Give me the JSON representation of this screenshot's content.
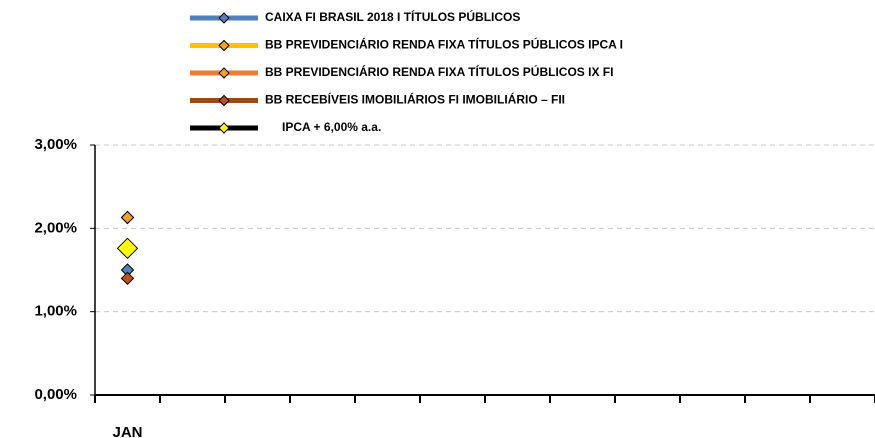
{
  "chart_data": {
    "type": "line",
    "categories": [
      "JAN",
      null,
      null,
      null,
      null,
      null,
      null,
      null,
      null,
      null,
      null,
      null
    ],
    "series": [
      {
        "name": "CAIXA FI BRASIL 2018 I TÍTULOS PÚBLICOS",
        "color": "#4f81bd",
        "marker_color": "#4f81bd",
        "values": [
          1.5,
          null,
          null,
          null,
          null,
          null,
          null,
          null,
          null,
          null,
          null,
          null
        ]
      },
      {
        "name": "BB PREVIDENCIÁRIO RENDA FIXA TÍTULOS PÚBLICOS IPCA I",
        "color": "#ffc000",
        "marker_color": "#f7a21b",
        "values": [
          2.13,
          null,
          null,
          null,
          null,
          null,
          null,
          null,
          null,
          null,
          null,
          null
        ]
      },
      {
        "name": "BB PREVIDENCIÁRIO RENDA FIXA TÍTULOS PÚBLICOS IX FI",
        "color": "#ed7d31",
        "marker_color": "#f7a21b",
        "values": [
          2.13,
          null,
          null,
          null,
          null,
          null,
          null,
          null,
          null,
          null,
          null,
          null
        ]
      },
      {
        "name": "BB RECEBÍVEIS IMOBILIÁRIOS FI IMOBILIÁRIO – FII",
        "color": "#9c4a12",
        "marker_color": "#b5541b",
        "values": [
          1.4,
          null,
          null,
          null,
          null,
          null,
          null,
          null,
          null,
          null,
          null,
          null
        ]
      },
      {
        "name": "IPCA + 6,00% a.a.",
        "color": "#000000",
        "marker_color": "#ffff00",
        "values": [
          1.76,
          null,
          null,
          null,
          null,
          null,
          null,
          null,
          null,
          null,
          null,
          null
        ]
      }
    ],
    "ylim": [
      0,
      3
    ],
    "yticks": [
      {
        "value": 0,
        "label": "0,00%"
      },
      {
        "value": 1,
        "label": "1,00%"
      },
      {
        "value": 2,
        "label": "2,00%"
      },
      {
        "value": 3,
        "label": "3,00%"
      }
    ],
    "grid": true,
    "legend": "top"
  }
}
